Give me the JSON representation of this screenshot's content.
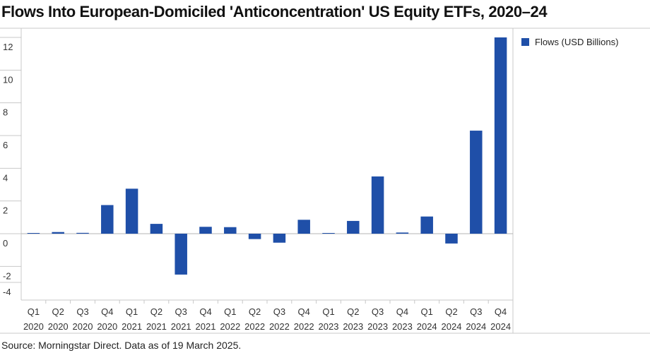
{
  "chart_data": {
    "type": "bar",
    "title": "Flows Into European-Domiciled 'Anticoncentration' US Equity ETFs, 2020–24",
    "categories": [
      [
        "Q1",
        "2020"
      ],
      [
        "Q2",
        "2020"
      ],
      [
        "Q3",
        "2020"
      ],
      [
        "Q4",
        "2020"
      ],
      [
        "Q1",
        "2021"
      ],
      [
        "Q2",
        "2021"
      ],
      [
        "Q3",
        "2021"
      ],
      [
        "Q4",
        "2021"
      ],
      [
        "Q1",
        "2022"
      ],
      [
        "Q2",
        "2022"
      ],
      [
        "Q3",
        "2022"
      ],
      [
        "Q4",
        "2022"
      ],
      [
        "Q1",
        "2023"
      ],
      [
        "Q2",
        "2023"
      ],
      [
        "Q3",
        "2023"
      ],
      [
        "Q4",
        "2023"
      ],
      [
        "Q1",
        "2024"
      ],
      [
        "Q2",
        "2024"
      ],
      [
        "Q3",
        "2024"
      ],
      [
        "Q4",
        "2024"
      ]
    ],
    "series": [
      {
        "name": "Flows (USD Billions)",
        "color": "#1f4fa8",
        "values": [
          0.03,
          0.1,
          0.05,
          1.75,
          2.75,
          0.6,
          -2.5,
          0.42,
          0.4,
          -0.33,
          -0.55,
          0.85,
          0.03,
          0.78,
          3.5,
          0.07,
          1.05,
          -0.6,
          6.3,
          12.0
        ]
      }
    ],
    "yticks": [
      "12",
      "10",
      "8",
      "6",
      "4",
      "2",
      "0",
      "-2",
      "-4"
    ],
    "ylim": [
      -4,
      12
    ],
    "xlabel": "",
    "ylabel": "",
    "legend_position": "top-right",
    "gridlines": false
  },
  "footer": {
    "source": "Source: Morningstar Direct. Data as of 19 March 2025."
  }
}
